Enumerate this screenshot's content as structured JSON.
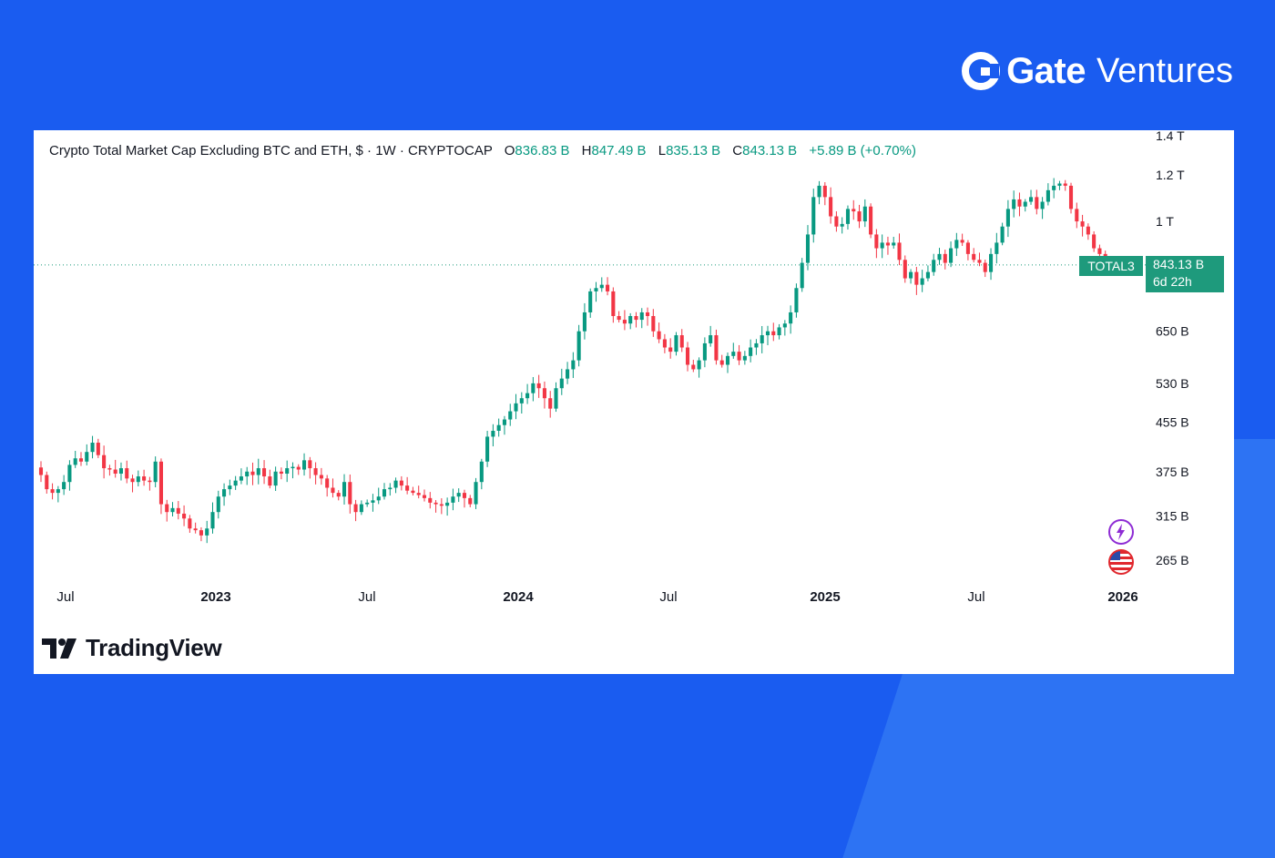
{
  "brand": {
    "name_strong": "Gate",
    "name_light": "Ventures"
  },
  "legend": {
    "title": "Crypto Total Market Cap Excluding BTC and ETH, $ · 1W · CRYPTOCAP",
    "open_key": "O",
    "open": "836.83 B",
    "high_key": "H",
    "high": "847.49 B",
    "low_key": "L",
    "low": "835.13 B",
    "close_key": "C",
    "close": "843.13 B",
    "change": "+5.89 B (+0.70%)"
  },
  "price_tag": {
    "symbol": "TOTAL3",
    "value": "843.13 B",
    "countdown": "6d 22h"
  },
  "watermark": "TradingView",
  "colors": {
    "up": "#089981",
    "down": "#f23645",
    "tag": "#1e9a7c",
    "background": "#1a5cf0"
  },
  "icons": [
    "gate-logo-icon",
    "lightning-icon",
    "us-flag-icon",
    "tradingview-logo-icon"
  ],
  "chart_data": {
    "type": "candlestick",
    "title": "Crypto Total Market Cap Excluding BTC and ETH",
    "symbol": "TOTAL3",
    "interval": "1W",
    "scale": "log",
    "y_unit": "USD",
    "y_ticks": [
      "265 B",
      "315 B",
      "375 B",
      "455 B",
      "530 B",
      "650 B",
      "1 T",
      "1.2 T",
      "1.4 T"
    ],
    "y_tick_values": [
      265,
      315,
      375,
      455,
      530,
      650,
      1000,
      1200,
      1400
    ],
    "x_ticks": [
      {
        "label": "Jul",
        "date": "2022-07"
      },
      {
        "label": "2023",
        "date": "2023-01"
      },
      {
        "label": "Jul",
        "date": "2023-07"
      },
      {
        "label": "2024",
        "date": "2024-01"
      },
      {
        "label": "Jul",
        "date": "2024-07"
      },
      {
        "label": "2025",
        "date": "2025-01"
      },
      {
        "label": "Jul",
        "date": "2025-07"
      },
      {
        "label": "2026",
        "date": "2026-01"
      }
    ],
    "last_price_line": 843.13,
    "closes": [
      370,
      350,
      345,
      350,
      360,
      385,
      395,
      390,
      405,
      420,
      400,
      380,
      378,
      372,
      380,
      365,
      360,
      368,
      362,
      360,
      390,
      330,
      320,
      325,
      318,
      312,
      300,
      298,
      292,
      300,
      320,
      340,
      350,
      355,
      362,
      368,
      375,
      370,
      380,
      368,
      355,
      375,
      372,
      380,
      382,
      378,
      392,
      380,
      370,
      365,
      352,
      345,
      340,
      360,
      330,
      320,
      330,
      332,
      335,
      340,
      350,
      352,
      362,
      355,
      348,
      345,
      342,
      338,
      332,
      330,
      328,
      332,
      340,
      345,
      338,
      330,
      360,
      390,
      430,
      440,
      450,
      460,
      475,
      490,
      500,
      510,
      530,
      520,
      500,
      480,
      520,
      540,
      560,
      580,
      650,
      700,
      760,
      770,
      780,
      760,
      690,
      680,
      670,
      690,
      680,
      700,
      690,
      650,
      630,
      610,
      600,
      640,
      610,
      570,
      560,
      580,
      620,
      640,
      580,
      570,
      590,
      600,
      580,
      590,
      610,
      620,
      640,
      650,
      640,
      660,
      670,
      700,
      770,
      850,
      950,
      1100,
      1150,
      1100,
      1020,
      980,
      990,
      1050,
      1040,
      1000,
      1060,
      950,
      900,
      920,
      910,
      920,
      860,
      800,
      820,
      780,
      800,
      820,
      860,
      880,
      850,
      900,
      930,
      920,
      880,
      860,
      850,
      820,
      880,
      920,
      980,
      1050,
      1090,
      1060,
      1080,
      1100,
      1050,
      1080,
      1130,
      1150,
      1160,
      1150,
      1050,
      1000,
      980,
      950,
      900,
      880,
      850,
      843
    ],
    "last_ohlc": {
      "open": 836.83,
      "high": 847.49,
      "low": 835.13,
      "close": 843.13
    }
  }
}
